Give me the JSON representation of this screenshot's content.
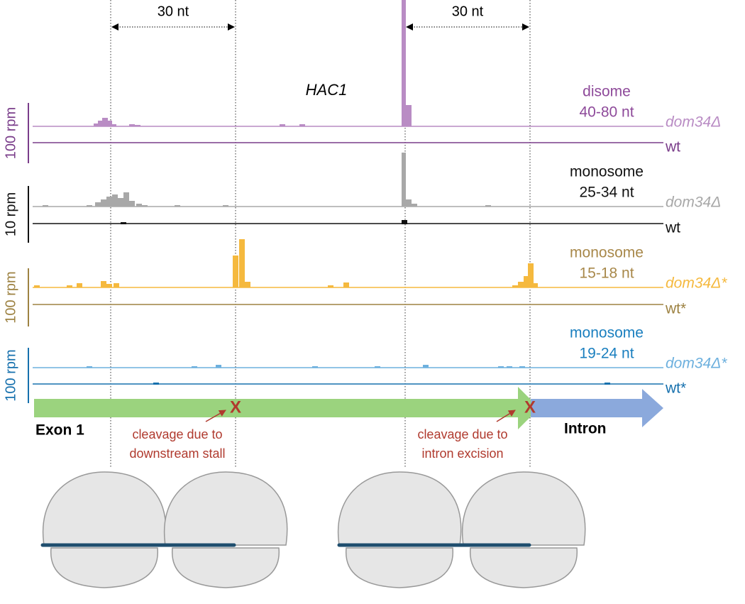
{
  "annotations": {
    "spacing_left": "30 nt",
    "spacing_right": "30 nt",
    "gene": "HAC1"
  },
  "tracks": [
    {
      "read_type": "disome",
      "length": "40-80 nt",
      "scale": "100 rpm",
      "mutant": "dom34Δ",
      "wildtype": "wt"
    },
    {
      "read_type": "monosome",
      "length": "25-34 nt",
      "scale": "10 rpm",
      "mutant": "dom34Δ",
      "wildtype": "wt"
    },
    {
      "read_type": "monosome",
      "length": "15-18 nt",
      "scale": "100 rpm",
      "mutant": "dom34Δ*",
      "wildtype": "wt*"
    },
    {
      "read_type": "monosome",
      "length": "19-24 nt",
      "scale": "100 rpm",
      "mutant": "dom34Δ*",
      "wildtype": "wt*"
    }
  ],
  "gene_model": {
    "exon": "Exon 1",
    "intron": "Intron",
    "cleavage_marks": [
      "X",
      "X"
    ]
  },
  "cleavage_notes": [
    [
      "cleavage due to",
      "downstream stall"
    ],
    [
      "cleavage due to",
      "intron excision"
    ]
  ]
}
